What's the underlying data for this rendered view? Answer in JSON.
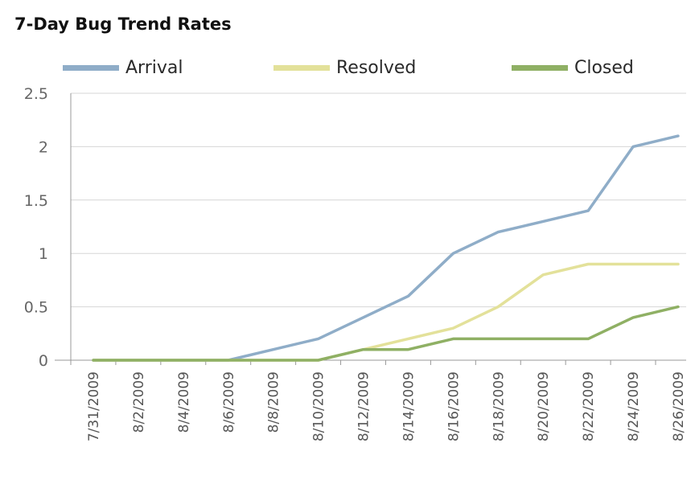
{
  "chart_data": {
    "type": "line",
    "title": "7-Day Bug Trend Rates",
    "xlabel": "",
    "ylabel": "",
    "ylim": [
      0,
      2.5
    ],
    "yticks": [
      "0",
      "0.5",
      "1",
      "1.5",
      "2",
      "2.5"
    ],
    "x_tick_labels": [
      "7/31/2009",
      "8/2/2009",
      "8/4/2009",
      "8/6/2009",
      "8/8/2009",
      "8/10/2009",
      "8/12/2009",
      "8/14/2009",
      "8/16/2009",
      "8/18/2009",
      "8/20/2009",
      "8/22/2009",
      "8/24/2009",
      "8/26/2009"
    ],
    "x": [
      "7/31/2009",
      "8/2/2009",
      "8/4/2009",
      "8/6/2009",
      "8/8/2009",
      "8/10/2009",
      "8/12/2009",
      "8/14/2009",
      "8/16/2009",
      "8/18/2009",
      "8/20/2009",
      "8/22/2009",
      "8/24/2009",
      "8/26/2009"
    ],
    "grid": true,
    "legend_position": "top",
    "series": [
      {
        "name": "Arrival",
        "color": "#8fadc8",
        "values": [
          0,
          0,
          0,
          0,
          0.1,
          0.2,
          0.4,
          0.6,
          1.0,
          1.2,
          1.3,
          1.4,
          2.0,
          2.1
        ]
      },
      {
        "name": "Resolved",
        "color": "#e3e19a",
        "values": [
          0,
          0,
          0,
          0,
          0,
          0,
          0.1,
          0.2,
          0.3,
          0.5,
          0.8,
          0.9,
          0.9,
          0.9
        ]
      },
      {
        "name": "Closed",
        "color": "#8fb064",
        "values": [
          0,
          0,
          0,
          0,
          0,
          0,
          0.1,
          0.1,
          0.2,
          0.2,
          0.2,
          0.2,
          0.4,
          0.5
        ]
      }
    ]
  }
}
